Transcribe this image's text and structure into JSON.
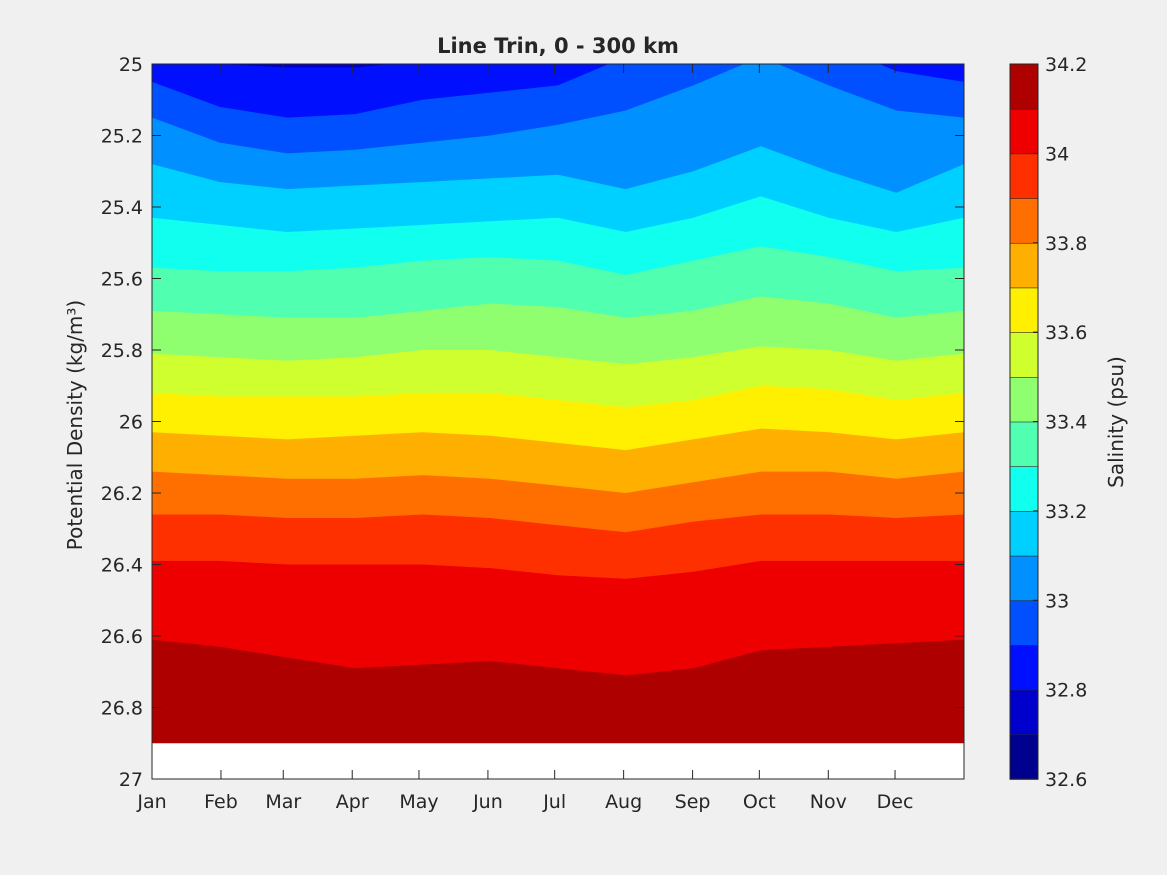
{
  "chart_data": {
    "type": "heatmap",
    "title": "Line Trin, 0 - 300 km",
    "xlabel": "",
    "ylabel": "Potential Density (kg/m³)",
    "x_tick_labels": [
      "Jan",
      "Feb",
      "Mar",
      "Apr",
      "May",
      "Jun",
      "Jul",
      "Aug",
      "Sep",
      "Oct",
      "Nov",
      "Dec"
    ],
    "x_tick_days": [
      0,
      31,
      59,
      90,
      120,
      151,
      181,
      212,
      243,
      273,
      304,
      334
    ],
    "xlim_days": [
      0,
      365
    ],
    "ylim": [
      27,
      25
    ],
    "y_reversed": true,
    "y_ticks": [
      25,
      25.2,
      25.4,
      25.6,
      25.8,
      26,
      26.2,
      26.4,
      26.6,
      26.8,
      27
    ],
    "y_tick_labels": [
      "25",
      "25.2",
      "25.4",
      "25.6",
      "25.8",
      "26",
      "26.2",
      "26.4",
      "26.6",
      "26.8",
      "27"
    ],
    "data_bottom_density": 26.9,
    "colorbar": {
      "label": "Salinity (psu)",
      "limits": [
        32.6,
        34.2
      ],
      "tick_values": [
        32.6,
        32.8,
        33,
        33.2,
        33.4,
        33.6,
        33.8,
        34,
        34.2
      ],
      "tick_labels": [
        "32.6",
        "32.8",
        "33",
        "33.2",
        "33.4",
        "33.6",
        "33.8",
        "34",
        "34.2"
      ],
      "level_step": 0.1,
      "colors": [
        "#00008f",
        "#0000cc",
        "#0010ff",
        "#0050ff",
        "#0090ff",
        "#00d0ff",
        "#10ffef",
        "#50ffaf",
        "#90ff6f",
        "#d0ff2f",
        "#ffef00",
        "#ffaf00",
        "#ff6f00",
        "#ff3000",
        "#ef0000",
        "#af0000"
      ]
    },
    "contour_months": [
      0,
      1,
      2,
      3,
      4,
      5,
      6,
      7,
      8,
      9,
      10,
      11,
      12
    ],
    "contour_boundaries": [
      {
        "salinity": 32.8,
        "density": [
          24.98,
          25.0,
          25.01,
          25.01,
          24.99,
          24.97,
          24.96,
          24.92,
          24.95,
          24.97,
          24.97,
          24.96,
          24.98
        ]
      },
      {
        "salinity": 32.9,
        "density": [
          25.05,
          25.12,
          25.15,
          25.14,
          25.1,
          25.08,
          25.06,
          24.98,
          24.93,
          24.9,
          24.94,
          25.02,
          25.05
        ]
      },
      {
        "salinity": 33.0,
        "density": [
          25.15,
          25.22,
          25.25,
          25.24,
          25.22,
          25.2,
          25.17,
          25.13,
          25.06,
          24.98,
          25.06,
          25.13,
          25.15
        ]
      },
      {
        "salinity": 33.1,
        "density": [
          25.28,
          25.33,
          25.35,
          25.34,
          25.33,
          25.32,
          25.31,
          25.35,
          25.3,
          25.23,
          25.3,
          25.36,
          25.28
        ]
      },
      {
        "salinity": 33.2,
        "density": [
          25.43,
          25.45,
          25.47,
          25.46,
          25.45,
          25.44,
          25.43,
          25.47,
          25.43,
          25.37,
          25.43,
          25.47,
          25.43
        ]
      },
      {
        "salinity": 33.3,
        "density": [
          25.57,
          25.58,
          25.58,
          25.57,
          25.55,
          25.54,
          25.55,
          25.59,
          25.55,
          25.51,
          25.54,
          25.58,
          25.57
        ]
      },
      {
        "salinity": 33.4,
        "density": [
          25.69,
          25.7,
          25.71,
          25.71,
          25.69,
          25.67,
          25.68,
          25.71,
          25.69,
          25.65,
          25.67,
          25.71,
          25.69
        ]
      },
      {
        "salinity": 33.5,
        "density": [
          25.81,
          25.82,
          25.83,
          25.82,
          25.8,
          25.8,
          25.82,
          25.84,
          25.82,
          25.79,
          25.8,
          25.83,
          25.81
        ]
      },
      {
        "salinity": 33.6,
        "density": [
          25.92,
          25.93,
          25.93,
          25.93,
          25.92,
          25.92,
          25.94,
          25.96,
          25.94,
          25.9,
          25.91,
          25.94,
          25.92
        ]
      },
      {
        "salinity": 33.7,
        "density": [
          26.03,
          26.04,
          26.05,
          26.04,
          26.03,
          26.04,
          26.06,
          26.08,
          26.05,
          26.02,
          26.03,
          26.05,
          26.03
        ]
      },
      {
        "salinity": 33.8,
        "density": [
          26.14,
          26.15,
          26.16,
          26.16,
          26.15,
          26.16,
          26.18,
          26.2,
          26.17,
          26.14,
          26.14,
          26.16,
          26.14
        ]
      },
      {
        "salinity": 33.9,
        "density": [
          26.26,
          26.26,
          26.27,
          26.27,
          26.26,
          26.27,
          26.29,
          26.31,
          26.28,
          26.26,
          26.26,
          26.27,
          26.26
        ]
      },
      {
        "salinity": 34.0,
        "density": [
          26.39,
          26.39,
          26.4,
          26.4,
          26.4,
          26.41,
          26.43,
          26.44,
          26.42,
          26.39,
          26.39,
          26.39,
          26.39
        ]
      },
      {
        "salinity": 34.1,
        "density": [
          26.61,
          26.63,
          26.66,
          26.69,
          26.68,
          26.67,
          26.69,
          26.71,
          26.69,
          26.64,
          26.63,
          26.62,
          26.61
        ]
      }
    ]
  }
}
